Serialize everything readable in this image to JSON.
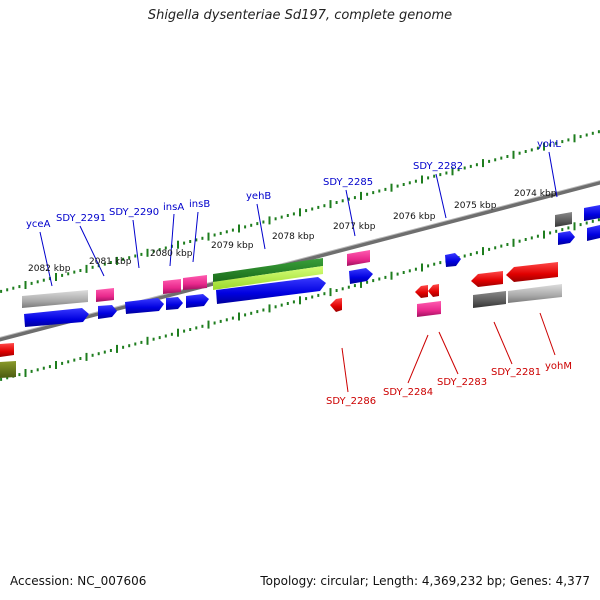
{
  "title": "Shigella dysenteriae Sd197, complete genome",
  "footer": {
    "accession": "Accession: NC_007606",
    "summary": "Topology: circular; Length: 4,369,232 bp; Genes: 4,377"
  },
  "colors": {
    "backbone": "#777777",
    "tick": "#1e7d1e",
    "forward_cds": "#0000ee",
    "reverse_cds": "#ee0000",
    "trna_like": "#e8288c",
    "gene_label_forward": "#0000cc",
    "gene_label_reverse": "#cc0000",
    "green_feature": "#2a8a2a",
    "lightgreen_feature": "#b7ef3a",
    "gray_feature": "#aaaaaa"
  },
  "kbp_labels": [
    "2082 kbp",
    "2081 kbp",
    "2080 kbp",
    "2079 kbp",
    "2078 kbp",
    "2077 kbp",
    "2076 kbp",
    "2075 kbp",
    "2074 kbp"
  ],
  "genes_top": [
    "yceA",
    "SDY_2291",
    "SDY_2290",
    "insA",
    "insB",
    "yehB",
    "SDY_2285",
    "SDY_2282",
    "yohL"
  ],
  "genes_bottom": [
    "SDY_2286",
    "SDY_2284",
    "SDY_2283",
    "SDY_2281",
    "yohM"
  ]
}
